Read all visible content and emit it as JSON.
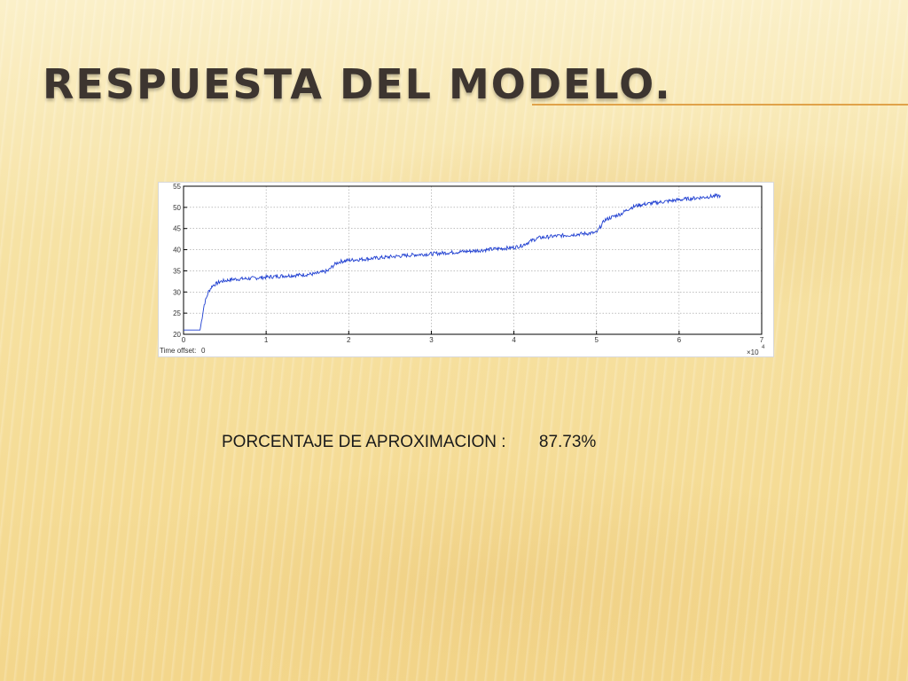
{
  "slide": {
    "title": "RESPUESTA DEL MODELO.",
    "result_label": "PORCENTAJE DE APROXIMACION :",
    "result_value": "87.73%",
    "colors": {
      "title": "#3d3530",
      "accent_rule": "#e0a24a",
      "background": "#f7e3a6"
    }
  },
  "chart_data": {
    "type": "line",
    "title": "",
    "xlabel": "",
    "ylabel": "",
    "xlim": [
      0,
      7
    ],
    "ylim": [
      20,
      55
    ],
    "x_ticks": [
      "0",
      "1",
      "2",
      "3",
      "4",
      "5",
      "6",
      "7"
    ],
    "y_ticks": [
      "20",
      "25",
      "30",
      "35",
      "40",
      "45",
      "50",
      "55"
    ],
    "x_multiplier_label": "×10",
    "x_multiplier_exponent": "4",
    "footer_label": "Time offset:",
    "footer_value": "0",
    "grid": true,
    "series": [
      {
        "name": "",
        "color": "#1f3fd1",
        "x": [
          0,
          0.15,
          0.2,
          0.25,
          0.3,
          0.35,
          0.45,
          0.6,
          0.8,
          1.0,
          1.2,
          1.4,
          1.6,
          1.75,
          1.8,
          1.85,
          1.9,
          2.0,
          2.2,
          2.5,
          2.8,
          3.0,
          3.2,
          3.5,
          3.8,
          4.0,
          4.1,
          4.2,
          4.3,
          4.5,
          4.8,
          5.0,
          5.05,
          5.1,
          5.2,
          5.3,
          5.4,
          5.5,
          5.6,
          5.8,
          6.0,
          6.2,
          6.4,
          6.5
        ],
        "y": [
          21,
          21,
          21,
          27,
          30,
          31.5,
          32.5,
          33,
          33.2,
          33.5,
          33.8,
          34,
          34.3,
          35,
          36,
          36.8,
          37.2,
          37.5,
          37.8,
          38.3,
          38.8,
          39,
          39.3,
          39.7,
          40.2,
          40.5,
          41,
          42,
          42.8,
          43.2,
          43.7,
          44,
          45.5,
          47,
          47.8,
          48.5,
          49.8,
          50.5,
          50.8,
          51.3,
          51.8,
          52.2,
          52.6,
          52.8
        ]
      }
    ]
  }
}
